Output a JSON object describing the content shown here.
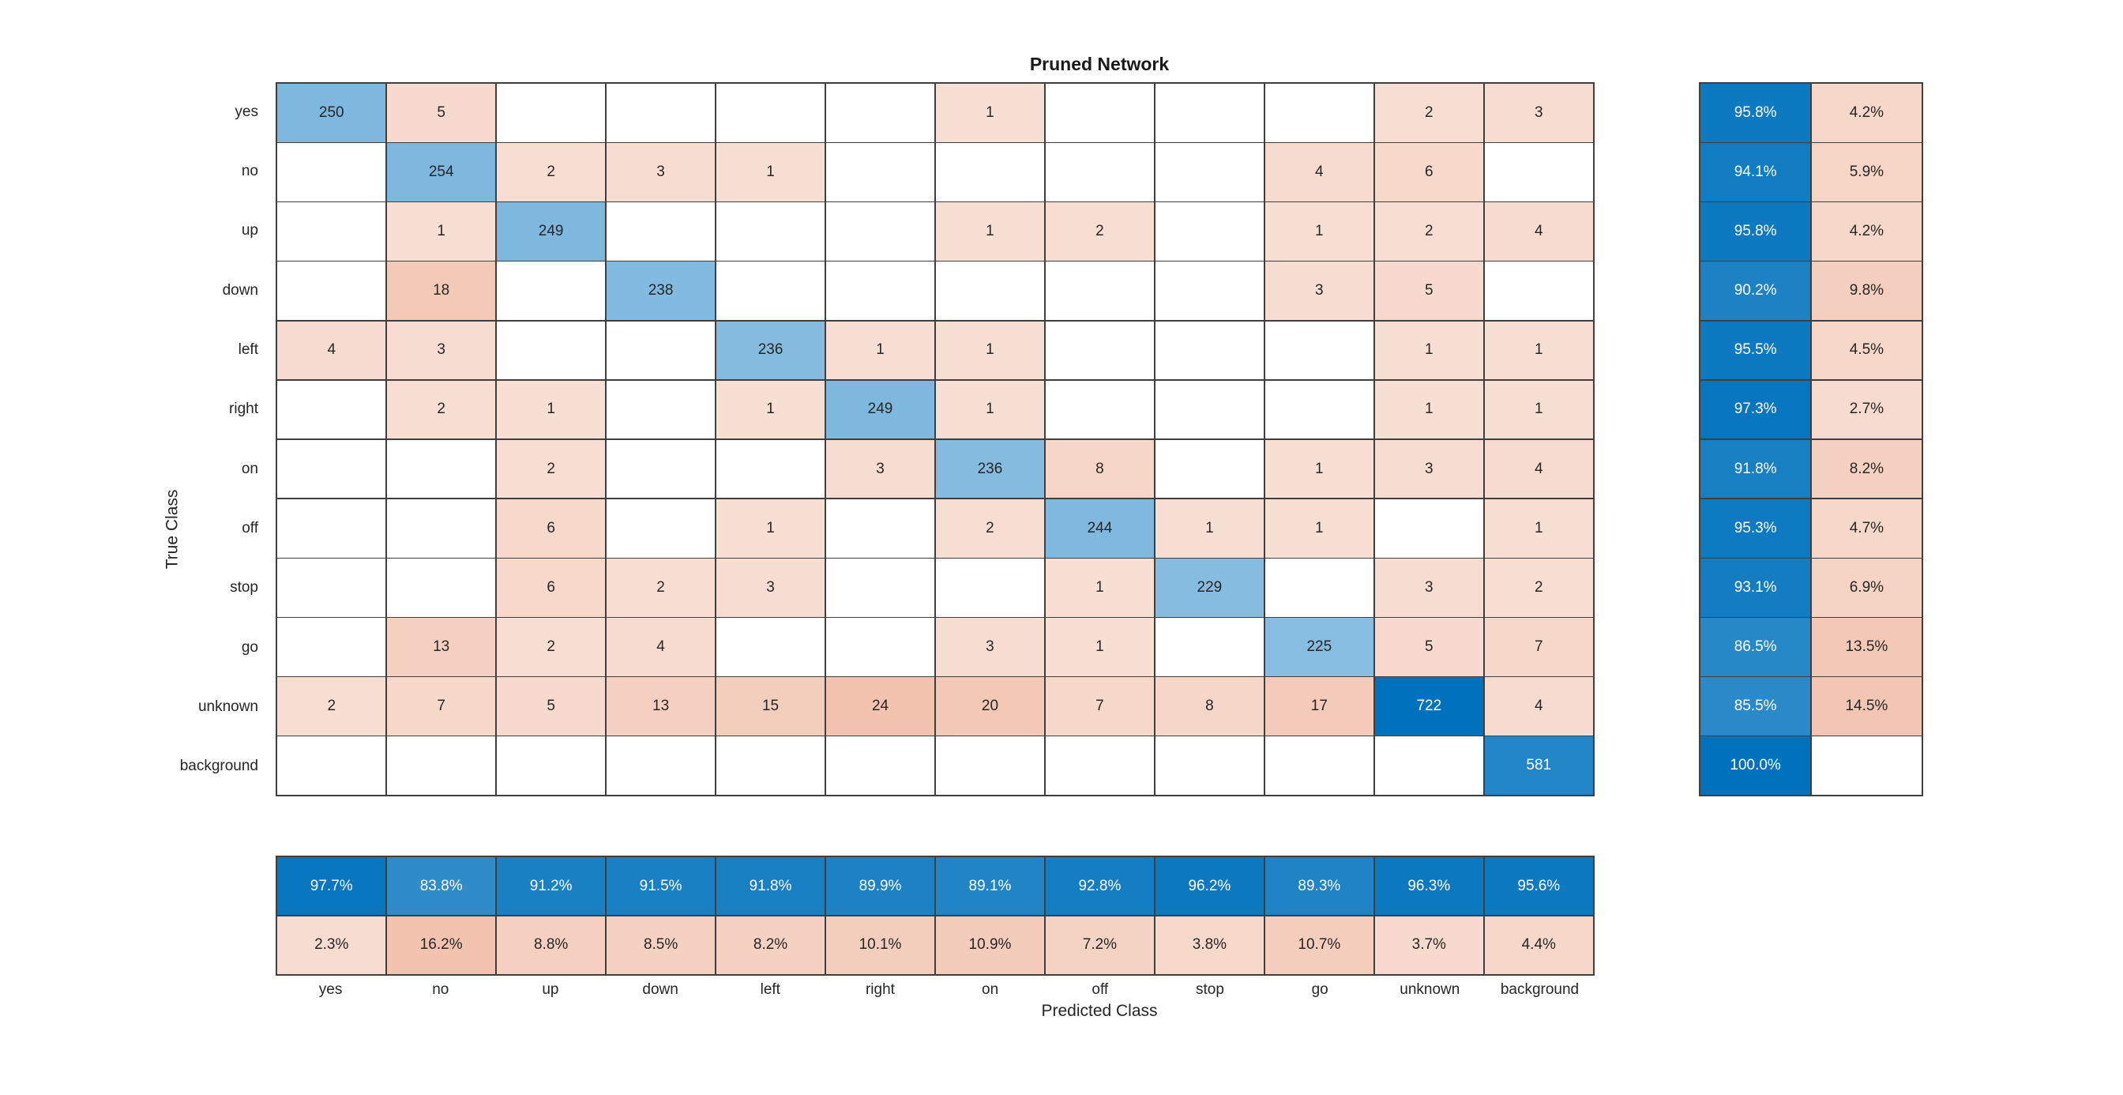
{
  "chart_data": {
    "type": "heatmap",
    "title": "Pruned Network",
    "xlabel": "Predicted Class",
    "ylabel": "True Class",
    "categories": [
      "yes",
      "no",
      "up",
      "down",
      "left",
      "right",
      "on",
      "off",
      "stop",
      "go",
      "unknown",
      "background"
    ],
    "matrix": [
      [
        250,
        5,
        0,
        0,
        0,
        0,
        1,
        0,
        0,
        0,
        2,
        3
      ],
      [
        0,
        254,
        2,
        3,
        1,
        0,
        0,
        0,
        0,
        4,
        6,
        0
      ],
      [
        0,
        1,
        249,
        0,
        0,
        0,
        1,
        2,
        0,
        1,
        2,
        4
      ],
      [
        0,
        18,
        0,
        238,
        0,
        0,
        0,
        0,
        0,
        3,
        5,
        0
      ],
      [
        4,
        3,
        0,
        0,
        236,
        1,
        1,
        0,
        0,
        0,
        1,
        1
      ],
      [
        0,
        2,
        1,
        0,
        1,
        249,
        1,
        0,
        0,
        0,
        1,
        1
      ],
      [
        0,
        0,
        2,
        0,
        0,
        3,
        236,
        8,
        0,
        1,
        3,
        4
      ],
      [
        0,
        0,
        6,
        0,
        1,
        0,
        2,
        244,
        1,
        1,
        0,
        1
      ],
      [
        0,
        0,
        6,
        2,
        3,
        0,
        0,
        1,
        229,
        0,
        3,
        2
      ],
      [
        0,
        13,
        2,
        4,
        0,
        0,
        3,
        1,
        0,
        225,
        5,
        7
      ],
      [
        2,
        7,
        5,
        13,
        15,
        24,
        20,
        7,
        8,
        17,
        722,
        4
      ],
      [
        0,
        0,
        0,
        0,
        0,
        0,
        0,
        0,
        0,
        0,
        0,
        581
      ]
    ],
    "row_summary": [
      [
        95.8,
        4.2
      ],
      [
        94.1,
        5.9
      ],
      [
        95.8,
        4.2
      ],
      [
        90.2,
        9.8
      ],
      [
        95.5,
        4.5
      ],
      [
        97.3,
        2.7
      ],
      [
        91.8,
        8.2
      ],
      [
        95.3,
        4.7
      ],
      [
        93.1,
        6.9
      ],
      [
        86.5,
        13.5
      ],
      [
        85.5,
        14.5
      ],
      [
        100.0,
        null
      ]
    ],
    "col_summary": [
      [
        97.7,
        2.3
      ],
      [
        83.8,
        16.2
      ],
      [
        91.2,
        8.8
      ],
      [
        91.5,
        8.5
      ],
      [
        91.8,
        8.2
      ],
      [
        89.9,
        10.1
      ],
      [
        89.1,
        10.9
      ],
      [
        92.8,
        7.2
      ],
      [
        96.2,
        3.8
      ],
      [
        89.3,
        10.7
      ],
      [
        96.3,
        3.7
      ],
      [
        95.6,
        4.4
      ]
    ],
    "colors": {
      "diagonal_base": "#0072BD",
      "off_diagonal_base": "#D95319",
      "grid_line": "#3F3F3F",
      "text": "#262626",
      "background": "#FFFFFF"
    },
    "legend_position": "none",
    "grid": "on"
  }
}
